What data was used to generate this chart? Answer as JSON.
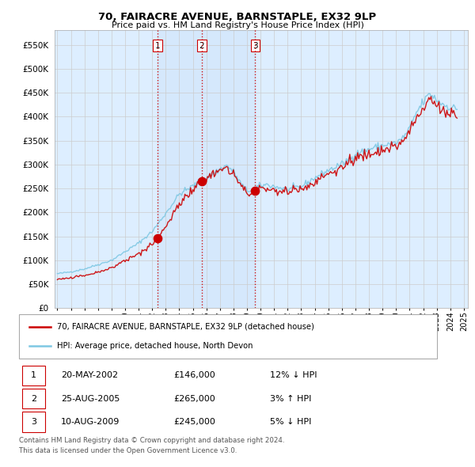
{
  "title": "70, FAIRACRE AVENUE, BARNSTAPLE, EX32 9LP",
  "subtitle": "Price paid vs. HM Land Registry's House Price Index (HPI)",
  "legend_line1": "70, FAIRACRE AVENUE, BARNSTAPLE, EX32 9LP (detached house)",
  "legend_line2": "HPI: Average price, detached house, North Devon",
  "footer1": "Contains HM Land Registry data © Crown copyright and database right 2024.",
  "footer2": "This data is licensed under the Open Government Licence v3.0.",
  "transactions": [
    {
      "num": 1,
      "date": "20-MAY-2002",
      "price": 146000,
      "pct": "12%",
      "dir": "↓",
      "year": 2002.38
    },
    {
      "num": 2,
      "date": "25-AUG-2005",
      "price": 265000,
      "pct": "3%",
      "dir": "↑",
      "year": 2005.65
    },
    {
      "num": 3,
      "date": "10-AUG-2009",
      "price": 245000,
      "pct": "5%",
      "dir": "↓",
      "year": 2009.61
    }
  ],
  "hpi_color": "#7ec8e3",
  "sale_color": "#cc0000",
  "vline_color": "#cc0000",
  "bg_color": "#ffffff",
  "grid_color": "#cccccc",
  "fill_color": "#ddeeff",
  "ylim": [
    0,
    580000
  ],
  "yticks": [
    0,
    50000,
    100000,
    150000,
    200000,
    250000,
    300000,
    350000,
    400000,
    450000,
    500000,
    550000
  ],
  "xlim_left": 1994.8,
  "xlim_right": 2025.3
}
